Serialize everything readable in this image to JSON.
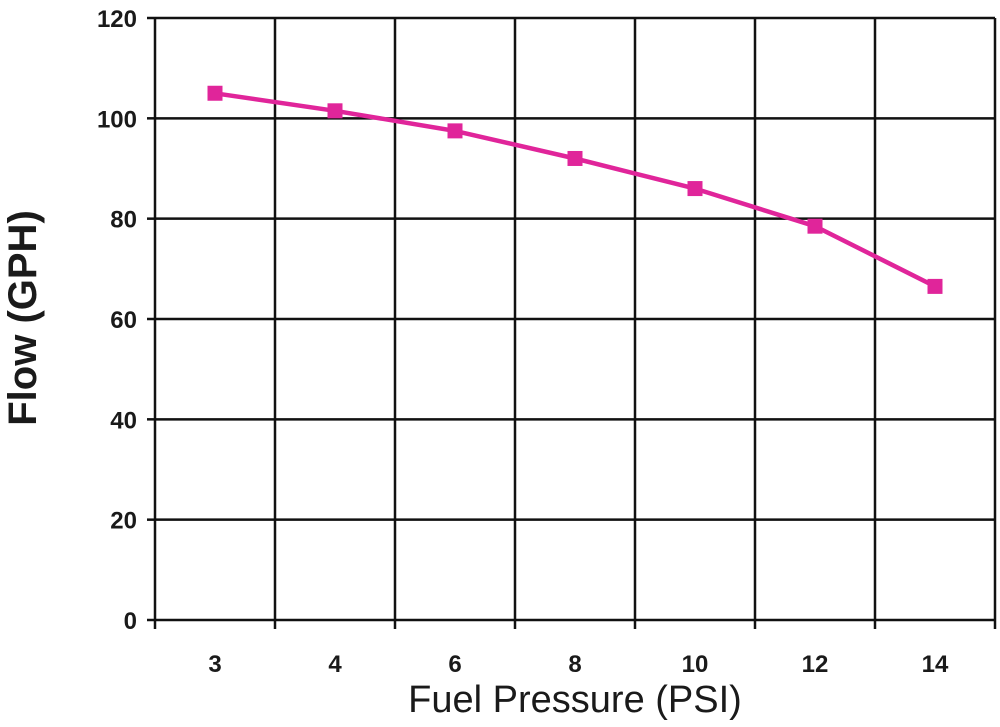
{
  "chart_data": {
    "type": "line",
    "title": "",
    "xlabel": "Fuel Pressure (PSI)",
    "ylabel": "Flow (GPH)",
    "categories": [
      "3",
      "4",
      "6",
      "8",
      "10",
      "12",
      "14"
    ],
    "series": [
      {
        "values": [
          105,
          101.5,
          97.5,
          92,
          86,
          78.5,
          66.5
        ],
        "color": "#e0259a"
      }
    ],
    "ylim": [
      0,
      120
    ],
    "yticks": [
      "0",
      "20",
      "40",
      "60",
      "80",
      "100",
      "120"
    ],
    "grid": true,
    "legend": "none",
    "marker": "square"
  }
}
